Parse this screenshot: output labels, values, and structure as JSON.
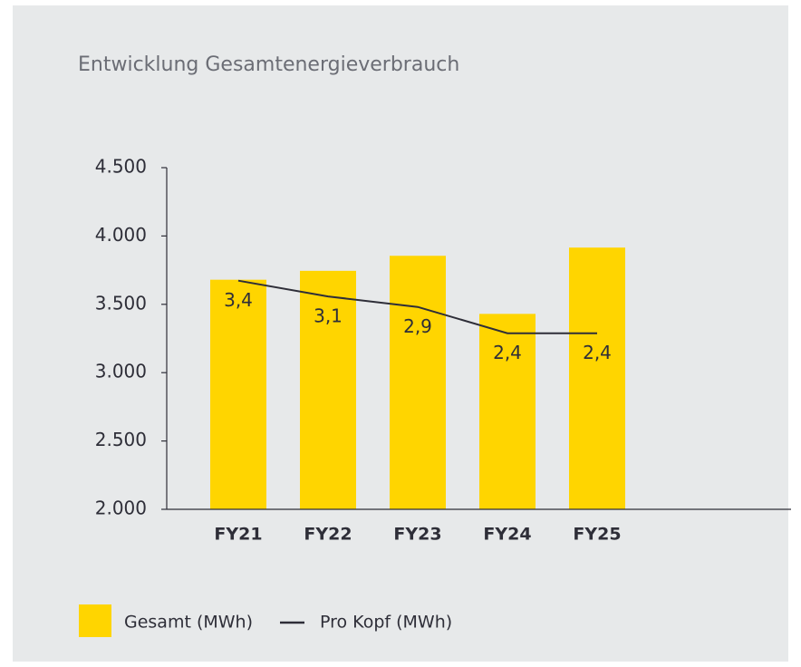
{
  "chart_data": {
    "type": "bar",
    "title": "Entwicklung Gesamtenergieverbrauch",
    "categories": [
      "FY21",
      "FY22",
      "FY23",
      "FY24",
      "FY25"
    ],
    "series": [
      {
        "name": "Gesamt (MWh)",
        "color": "#ffd500",
        "type": "bar",
        "values": [
          3680,
          3745,
          3855,
          3430,
          3915
        ]
      },
      {
        "name": "Pro Kopf (MWh)",
        "color": "#2e2e38",
        "type": "line",
        "axis": "y2",
        "values": [
          3.4,
          3.1,
          2.9,
          2.4,
          2.4
        ],
        "value_labels": [
          "3,4",
          "3,1",
          "2,9",
          "2,4",
          "2,4"
        ]
      }
    ],
    "ylim": [
      2000,
      4500
    ],
    "yticks": [
      {
        "value": 2000,
        "label": "2.000"
      },
      {
        "value": 2500,
        "label": "2.500"
      },
      {
        "value": 3000,
        "label": "3.000"
      },
      {
        "value": 3500,
        "label": "3.500"
      },
      {
        "value": 4000,
        "label": "4.000"
      },
      {
        "value": 4500,
        "label": "4.500"
      }
    ],
    "y2lim": [
      -0.95,
      5.55
    ],
    "grid": false,
    "legend": "bottom"
  }
}
